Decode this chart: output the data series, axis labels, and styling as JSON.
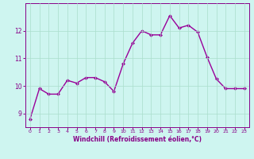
{
  "x": [
    0,
    1,
    2,
    3,
    4,
    5,
    6,
    7,
    8,
    9,
    10,
    11,
    12,
    13,
    14,
    15,
    16,
    17,
    18,
    19,
    20,
    21,
    22,
    23
  ],
  "y": [
    8.8,
    9.9,
    9.7,
    9.7,
    10.2,
    10.1,
    10.3,
    10.3,
    10.15,
    9.8,
    10.8,
    11.55,
    12.0,
    11.85,
    11.85,
    12.55,
    12.1,
    12.2,
    11.95,
    11.05,
    10.25,
    9.9,
    9.9,
    9.9
  ],
  "line_color": "#990099",
  "marker": "D",
  "marker_size": 2.0,
  "line_width": 1.0,
  "bg_color": "#cef5f0",
  "grid_color": "#aaddcc",
  "xlabel": "Windchill (Refroidissement éolien,°C)",
  "xlabel_color": "#880088",
  "tick_color": "#880088",
  "axis_color": "#880088",
  "xlim": [
    -0.5,
    23.5
  ],
  "ylim": [
    8.5,
    13.0
  ],
  "yticks": [
    9,
    10,
    11,
    12
  ],
  "xticks": [
    0,
    1,
    2,
    3,
    4,
    5,
    6,
    7,
    8,
    9,
    10,
    11,
    12,
    13,
    14,
    15,
    16,
    17,
    18,
    19,
    20,
    21,
    22,
    23
  ],
  "xlabel_fontsize": 5.5,
  "xlabel_fontweight": "bold",
  "xtick_fontsize": 4.5,
  "ytick_fontsize": 5.5
}
